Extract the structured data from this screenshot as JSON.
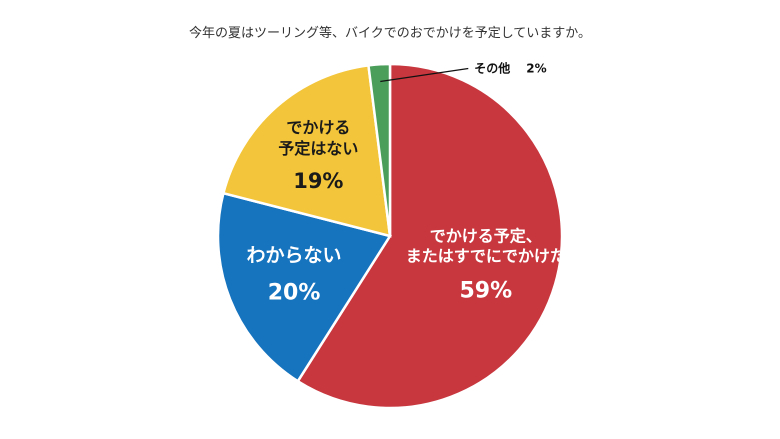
{
  "chart_data": {
    "type": "pie",
    "title": "今年の夏はツーリング等、バイクでのおでかけを予定していますか。",
    "slices": [
      {
        "label_lines": [
          "でかける予定、",
          "またはすでにでかけた"
        ],
        "value": 59,
        "value_label": "59%",
        "color": "#c8373e",
        "text_color": "#ffffff"
      },
      {
        "label_lines": [
          "わからない"
        ],
        "value": 20,
        "value_label": "20%",
        "color": "#1673be",
        "text_color": "#ffffff"
      },
      {
        "label_lines": [
          "でかける",
          "予定はない"
        ],
        "value": 19,
        "value_label": "19%",
        "color": "#f3c53a",
        "text_color": "#1a1a1a"
      },
      {
        "label_lines": [
          "その他"
        ],
        "value": 2,
        "value_label": "2%",
        "color": "#4b9e5a",
        "text_color": "#111111"
      }
    ],
    "start_angle": "12 o'clock",
    "direction": "clockwise",
    "legend": "none"
  }
}
